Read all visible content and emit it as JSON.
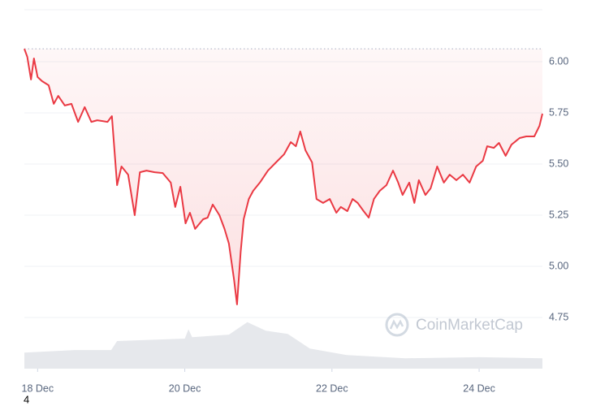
{
  "chart_data": {
    "type": "line",
    "watermark": "CoinMarketCap",
    "footnote": "4",
    "xlim": [
      17.82,
      24.86
    ],
    "xticks": [
      {
        "value": 18,
        "label": "18 Dec"
      },
      {
        "value": 20,
        "label": "20 Dec"
      },
      {
        "value": 22,
        "label": "22 Dec"
      },
      {
        "value": 24,
        "label": "24 Dec"
      }
    ],
    "ylim": [
      4.5,
      6.25
    ],
    "yticks": [
      4.75,
      {
        "value": 5,
        "label": "5.00"
      },
      5.25,
      {
        "value": 5.5,
        "label": "5.50"
      },
      5.75,
      {
        "value": 6,
        "label": "6.00"
      }
    ],
    "y2lim": [
      0,
      100
    ],
    "grid": true,
    "reference_line": 6.063,
    "series": [
      {
        "color": "#ea3943",
        "x": [
          17.82,
          17.86,
          17.91,
          17.95,
          18.0,
          18.06,
          18.15,
          18.22,
          18.28,
          18.37,
          18.46,
          18.55,
          18.64,
          18.73,
          18.81,
          18.95,
          19.01,
          19.08,
          19.14,
          19.23,
          19.32,
          19.39,
          19.48,
          19.59,
          19.7,
          19.81,
          19.87,
          19.94,
          20.01,
          20.07,
          20.14,
          20.25,
          20.31,
          20.38,
          20.47,
          20.54,
          20.6,
          20.67,
          20.71,
          20.76,
          20.8,
          20.87,
          20.93,
          21.02,
          21.13,
          21.24,
          21.35,
          21.44,
          21.51,
          21.57,
          21.64,
          21.73,
          21.79,
          21.88,
          21.97,
          22.06,
          22.12,
          22.21,
          22.28,
          22.35,
          22.43,
          22.5,
          22.57,
          22.65,
          22.74,
          22.83,
          22.9,
          22.96,
          23.05,
          23.12,
          23.18,
          23.27,
          23.34,
          23.43,
          23.52,
          23.6,
          23.69,
          23.78,
          23.87,
          23.96,
          24.05,
          24.11,
          24.2,
          24.27,
          24.36,
          24.44,
          24.55,
          24.64,
          24.75,
          24.82,
          24.86
        ],
        "values": [
          6.063,
          6.024,
          5.913,
          6.016,
          5.925,
          5.905,
          5.885,
          5.794,
          5.833,
          5.786,
          5.794,
          5.706,
          5.778,
          5.706,
          5.714,
          5.706,
          5.734,
          5.397,
          5.488,
          5.448,
          5.25,
          5.46,
          5.468,
          5.46,
          5.456,
          5.409,
          5.29,
          5.389,
          5.21,
          5.262,
          5.183,
          5.23,
          5.238,
          5.302,
          5.25,
          5.183,
          5.111,
          4.933,
          4.814,
          5.071,
          5.23,
          5.329,
          5.369,
          5.409,
          5.468,
          5.508,
          5.548,
          5.607,
          5.587,
          5.659,
          5.567,
          5.508,
          5.329,
          5.31,
          5.329,
          5.262,
          5.29,
          5.27,
          5.329,
          5.31,
          5.27,
          5.238,
          5.329,
          5.369,
          5.397,
          5.468,
          5.409,
          5.349,
          5.409,
          5.31,
          5.421,
          5.349,
          5.381,
          5.488,
          5.409,
          5.448,
          5.421,
          5.448,
          5.409,
          5.488,
          5.516,
          5.587,
          5.579,
          5.603,
          5.54,
          5.595,
          5.627,
          5.635,
          5.635,
          5.687,
          5.746
        ]
      },
      {
        "color": "#e6e8ec",
        "axis": "y2",
        "x": [
          17.82,
          18.5,
          19.0,
          19.08,
          20.0,
          20.05,
          20.1,
          20.6,
          20.85,
          21.1,
          21.4,
          21.7,
          22.2,
          23.0,
          24.0,
          24.86
        ],
        "values": [
          4.5,
          5.2,
          5.2,
          7.7,
          8.4,
          11,
          8.8,
          9.5,
          13,
          10.6,
          9.7,
          5.6,
          3.8,
          2.9,
          3.2,
          2.9
        ]
      }
    ]
  }
}
